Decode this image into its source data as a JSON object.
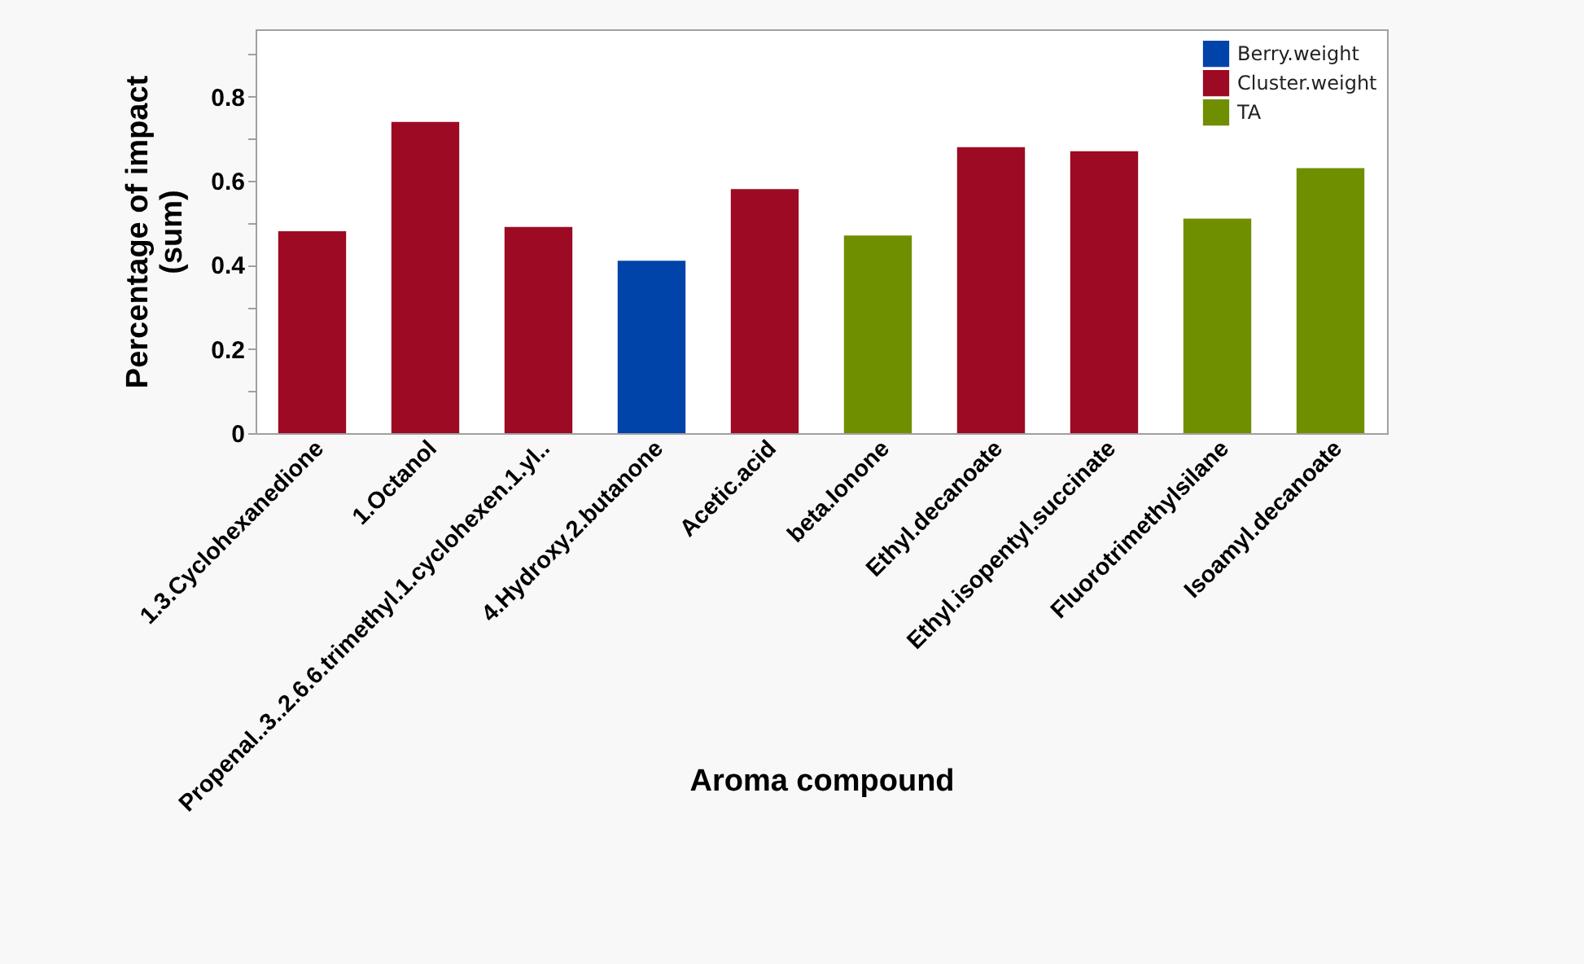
{
  "chart_data": {
    "type": "bar",
    "xlabel": "Aroma compound",
    "ylabel": "Percentage of impact\n(sum)",
    "categories": [
      "1.3.Cyclohexanedione",
      "1.Octanol",
      "Propenal..3..2.6.6.trimethyl.1.cyclohexen.1.yl..",
      "4.Hydroxy.2.butanone",
      "Acetic.acid",
      "beta.Ionone",
      "Ethyl.decanoate",
      "Ethyl.isopentyl.succinate",
      "Fluorotrimethylsilane",
      "Isoamyl.decanoate"
    ],
    "series": [
      {
        "name": "Berry.weight",
        "color": "#0044aa",
        "values": [
          null,
          null,
          null,
          0.41,
          null,
          null,
          null,
          null,
          null,
          null
        ]
      },
      {
        "name": "Cluster.weight",
        "color": "#9c0a23",
        "values": [
          0.48,
          0.74,
          0.49,
          null,
          0.58,
          null,
          0.68,
          0.67,
          null,
          null
        ]
      },
      {
        "name": "TA",
        "color": "#6f8f00",
        "values": [
          null,
          null,
          null,
          null,
          null,
          0.47,
          null,
          null,
          0.51,
          0.63
        ]
      }
    ],
    "ylim": [
      0,
      0.96
    ],
    "yticks": [
      0,
      {
        "value": 0.1,
        "label": null
      },
      0.2,
      {
        "value": 0.3,
        "label": null
      },
      0.4,
      {
        "value": 0.5,
        "label": null
      },
      0.6,
      {
        "value": 0.7,
        "label": null
      },
      0.8,
      {
        "value": 0.9,
        "label": null
      }
    ],
    "legend": "top right",
    "grid": false
  }
}
